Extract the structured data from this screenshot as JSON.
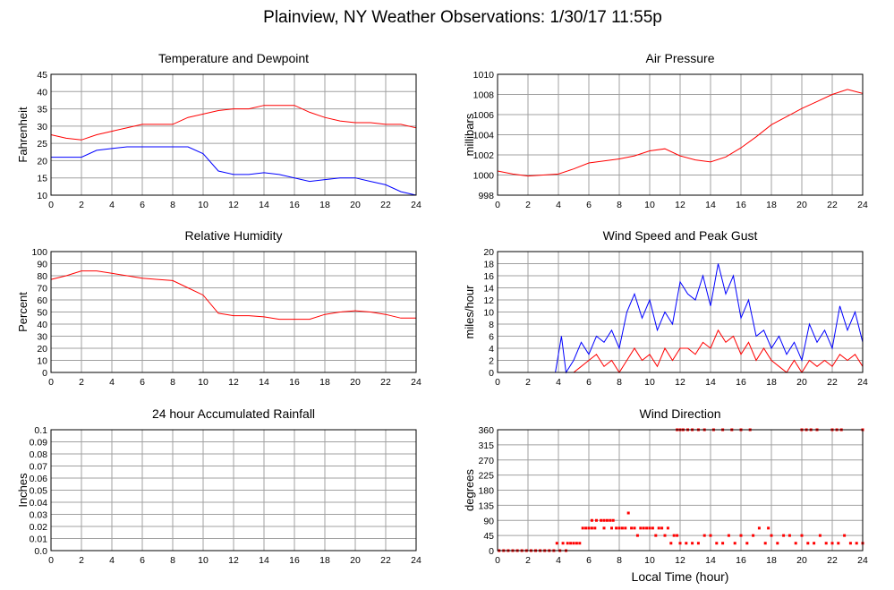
{
  "title": "Plainview, NY Weather Observations: 1/30/17 11:55p",
  "xlabel": "Local Time (hour)",
  "colors": {
    "primary": "#ff0000",
    "secondary": "#0000ff",
    "grid": "#a0a0a0",
    "frame": "#000000"
  },
  "chart_data": [
    {
      "type": "line",
      "title": "Temperature and Dewpoint",
      "ylabel": "Fahrenheit",
      "xlim": [
        0,
        24
      ],
      "ylim": [
        10,
        45
      ],
      "xticks": [
        "0",
        "2",
        "4",
        "6",
        "8",
        "10",
        "12",
        "14",
        "16",
        "18",
        "20",
        "22",
        "24"
      ],
      "yticks": [
        "10",
        "15",
        "20",
        "25",
        "30",
        "35",
        "40",
        "45"
      ],
      "grid": true,
      "x": [
        0,
        1,
        2,
        3,
        4,
        5,
        6,
        7,
        8,
        9,
        10,
        11,
        12,
        13,
        14,
        15,
        16,
        17,
        18,
        19,
        20,
        21,
        22,
        23,
        24
      ],
      "series": [
        {
          "color": "#ff0000",
          "values": [
            27.5,
            26.5,
            26,
            27.5,
            28.5,
            29.5,
            30.5,
            30.5,
            30.5,
            32.5,
            33.5,
            34.5,
            35,
            35,
            36,
            36,
            36,
            34,
            32.5,
            31.5,
            31,
            31,
            30.5,
            30.5,
            29.5
          ]
        },
        {
          "color": "#0000ff",
          "values": [
            21,
            21,
            21,
            23,
            23.5,
            24,
            24,
            24,
            24,
            24,
            22,
            17,
            16,
            16,
            16.5,
            16,
            15,
            14,
            14.5,
            15,
            15,
            14,
            13,
            11,
            10
          ]
        }
      ]
    },
    {
      "type": "line",
      "title": "Air Pressure",
      "ylabel": "millibars",
      "xlim": [
        0,
        24
      ],
      "ylim": [
        998,
        1010
      ],
      "xticks": [
        "0",
        "2",
        "4",
        "6",
        "8",
        "10",
        "12",
        "14",
        "16",
        "18",
        "20",
        "22",
        "24"
      ],
      "yticks": [
        "998",
        "1000",
        "1002",
        "1004",
        "1006",
        "1008",
        "1010"
      ],
      "grid": true,
      "x": [
        0,
        1,
        2,
        3,
        4,
        5,
        6,
        7,
        8,
        9,
        10,
        11,
        12,
        13,
        14,
        15,
        16,
        17,
        18,
        19,
        20,
        21,
        22,
        23,
        24
      ],
      "series": [
        {
          "color": "#ff0000",
          "values": [
            1000.4,
            1000.1,
            999.9,
            1000.0,
            1000.1,
            1000.6,
            1001.2,
            1001.4,
            1001.6,
            1001.9,
            1002.4,
            1002.6,
            1001.9,
            1001.5,
            1001.3,
            1001.8,
            1002.7,
            1003.8,
            1005.0,
            1005.8,
            1006.6,
            1007.3,
            1008.0,
            1008.5,
            1008.1
          ]
        }
      ]
    },
    {
      "type": "line",
      "title": "Relative Humidity",
      "ylabel": "Percent",
      "xlim": [
        0,
        24
      ],
      "ylim": [
        0,
        100
      ],
      "xticks": [
        "0",
        "2",
        "4",
        "6",
        "8",
        "10",
        "12",
        "14",
        "16",
        "18",
        "20",
        "22",
        "24"
      ],
      "yticks": [
        "0",
        "10",
        "20",
        "30",
        "40",
        "50",
        "60",
        "70",
        "80",
        "90",
        "100"
      ],
      "grid": true,
      "x": [
        0,
        1,
        2,
        3,
        4,
        5,
        6,
        7,
        8,
        9,
        10,
        11,
        12,
        13,
        14,
        15,
        16,
        17,
        18,
        19,
        20,
        21,
        22,
        23,
        24
      ],
      "series": [
        {
          "color": "#ff0000",
          "values": [
            77,
            80,
            84,
            84,
            82,
            80,
            78,
            77,
            76,
            70,
            64,
            49,
            47,
            47,
            46,
            44,
            44,
            44,
            48,
            50,
            51,
            50,
            48,
            45,
            45
          ]
        }
      ]
    },
    {
      "type": "line",
      "title": "Wind Speed and Peak Gust",
      "ylabel": "miles/hour",
      "xlim": [
        0,
        24
      ],
      "ylim": [
        0,
        20
      ],
      "xticks": [
        "0",
        "2",
        "4",
        "6",
        "8",
        "10",
        "12",
        "14",
        "16",
        "18",
        "20",
        "22",
        "24"
      ],
      "yticks": [
        "0",
        "2",
        "4",
        "6",
        "8",
        "10",
        "12",
        "14",
        "16",
        "18",
        "20"
      ],
      "grid": true,
      "x": [
        0,
        1,
        2,
        3,
        3.8,
        4.2,
        4.5,
        5,
        5.5,
        6,
        6.5,
        7,
        7.5,
        8,
        8.5,
        9,
        9.5,
        10,
        10.5,
        11,
        11.5,
        12,
        12.5,
        13,
        13.5,
        14,
        14.5,
        15,
        15.5,
        16,
        16.5,
        17,
        17.5,
        18,
        18.5,
        19,
        19.5,
        20,
        20.5,
        21,
        21.5,
        22,
        22.5,
        23,
        23.5,
        24
      ],
      "series": [
        {
          "color": "#0000ff",
          "values": [
            0,
            0,
            0,
            0,
            0,
            6,
            0,
            2,
            5,
            3,
            6,
            5,
            7,
            4,
            10,
            13,
            9,
            12,
            7,
            10,
            8,
            15,
            13,
            12,
            16,
            11,
            18,
            13,
            16,
            9,
            12,
            6,
            7,
            4,
            6,
            3,
            5,
            2,
            8,
            5,
            7,
            4,
            11,
            7,
            10,
            5
          ]
        },
        {
          "color": "#ff0000",
          "values": [
            0,
            0,
            0,
            0,
            0,
            0,
            0,
            0,
            1,
            2,
            3,
            1,
            2,
            0,
            2,
            4,
            2,
            3,
            1,
            4,
            2,
            4,
            4,
            3,
            5,
            4,
            7,
            5,
            6,
            3,
            5,
            2,
            4,
            2,
            1,
            0,
            2,
            0,
            2,
            1,
            2,
            1,
            3,
            2,
            3,
            1
          ]
        }
      ]
    },
    {
      "type": "line",
      "title": "24 hour Accumulated Rainfall",
      "ylabel": "Inches",
      "xlim": [
        0,
        24
      ],
      "ylim": [
        0,
        0.1
      ],
      "xticks": [
        "0",
        "2",
        "4",
        "6",
        "8",
        "10",
        "12",
        "14",
        "16",
        "18",
        "20",
        "22",
        "24"
      ],
      "yticks": [
        "0.0",
        "0.01",
        "0.02",
        "0.03",
        "0.04",
        "0.05",
        "0.06",
        "0.07",
        "0.08",
        "0.09",
        "0.1"
      ],
      "grid": true,
      "x": [
        0,
        24
      ],
      "series": [
        {
          "color": "#ff0000",
          "values": [
            0,
            0
          ]
        }
      ]
    },
    {
      "type": "scatter",
      "title": "Wind Direction",
      "ylabel": "degrees",
      "xlim": [
        0,
        24
      ],
      "ylim": [
        0,
        360
      ],
      "xticks": [
        "0",
        "2",
        "4",
        "6",
        "8",
        "10",
        "12",
        "14",
        "16",
        "18",
        "20",
        "22",
        "24"
      ],
      "yticks": [
        "0",
        "45",
        "90",
        "135",
        "180",
        "225",
        "270",
        "315",
        "360"
      ],
      "grid": true,
      "series": [
        {
          "color": "#ff0000",
          "points": [
            [
              0.1,
              0
            ],
            [
              0.4,
              0
            ],
            [
              0.7,
              0
            ],
            [
              1.0,
              0
            ],
            [
              1.3,
              0
            ],
            [
              1.6,
              0
            ],
            [
              1.9,
              0
            ],
            [
              2.2,
              0
            ],
            [
              2.5,
              0
            ],
            [
              2.8,
              0
            ],
            [
              3.1,
              0
            ],
            [
              3.4,
              0
            ],
            [
              3.7,
              0
            ],
            [
              3.9,
              22
            ],
            [
              4.1,
              0
            ],
            [
              4.3,
              22
            ],
            [
              4.5,
              0
            ],
            [
              4.6,
              22
            ],
            [
              4.8,
              22
            ],
            [
              5.0,
              22
            ],
            [
              5.2,
              22
            ],
            [
              5.4,
              22
            ],
            [
              5.6,
              67
            ],
            [
              5.8,
              67
            ],
            [
              6.0,
              67
            ],
            [
              6.2,
              67
            ],
            [
              6.4,
              67
            ],
            [
              6.2,
              90
            ],
            [
              6.5,
              90
            ],
            [
              6.8,
              90
            ],
            [
              7.0,
              90
            ],
            [
              7.2,
              90
            ],
            [
              7.4,
              90
            ],
            [
              7.6,
              90
            ],
            [
              7.0,
              67
            ],
            [
              7.5,
              67
            ],
            [
              7.8,
              67
            ],
            [
              8.0,
              67
            ],
            [
              8.2,
              67
            ],
            [
              8.4,
              67
            ],
            [
              8.6,
              112
            ],
            [
              8.8,
              67
            ],
            [
              9.0,
              67
            ],
            [
              9.2,
              45
            ],
            [
              9.4,
              67
            ],
            [
              9.6,
              67
            ],
            [
              9.8,
              67
            ],
            [
              10.0,
              67
            ],
            [
              10.2,
              67
            ],
            [
              10.4,
              45
            ],
            [
              10.6,
              67
            ],
            [
              10.8,
              67
            ],
            [
              11.0,
              45
            ],
            [
              11.2,
              67
            ],
            [
              11.4,
              22
            ],
            [
              11.6,
              45
            ],
            [
              11.8,
              45
            ],
            [
              11.8,
              360
            ],
            [
              12.0,
              360
            ],
            [
              12.2,
              360
            ],
            [
              12.5,
              360
            ],
            [
              12.8,
              360
            ],
            [
              13.2,
              360
            ],
            [
              13.6,
              360
            ],
            [
              14.2,
              360
            ],
            [
              14.8,
              360
            ],
            [
              15.4,
              360
            ],
            [
              16.0,
              360
            ],
            [
              16.6,
              360
            ],
            [
              12.0,
              22
            ],
            [
              12.4,
              22
            ],
            [
              12.8,
              22
            ],
            [
              13.2,
              22
            ],
            [
              13.6,
              45
            ],
            [
              14.0,
              45
            ],
            [
              14.4,
              22
            ],
            [
              14.8,
              22
            ],
            [
              15.2,
              45
            ],
            [
              15.6,
              22
            ],
            [
              16.0,
              45
            ],
            [
              16.4,
              22
            ],
            [
              16.8,
              45
            ],
            [
              17.2,
              67
            ],
            [
              17.6,
              22
            ],
            [
              17.8,
              67
            ],
            [
              18.0,
              45
            ],
            [
              18.4,
              22
            ],
            [
              18.8,
              45
            ],
            [
              19.2,
              45
            ],
            [
              19.6,
              22
            ],
            [
              20.0,
              45
            ],
            [
              20.4,
              22
            ],
            [
              20.8,
              22
            ],
            [
              20.0,
              360
            ],
            [
              20.3,
              360
            ],
            [
              20.6,
              360
            ],
            [
              21.0,
              360
            ],
            [
              22.0,
              360
            ],
            [
              22.3,
              360
            ],
            [
              22.6,
              360
            ],
            [
              24.0,
              360
            ],
            [
              21.2,
              45
            ],
            [
              21.6,
              22
            ],
            [
              22.0,
              22
            ],
            [
              22.4,
              22
            ],
            [
              22.8,
              45
            ],
            [
              23.2,
              22
            ],
            [
              23.6,
              22
            ],
            [
              24.0,
              22
            ]
          ]
        }
      ]
    }
  ]
}
